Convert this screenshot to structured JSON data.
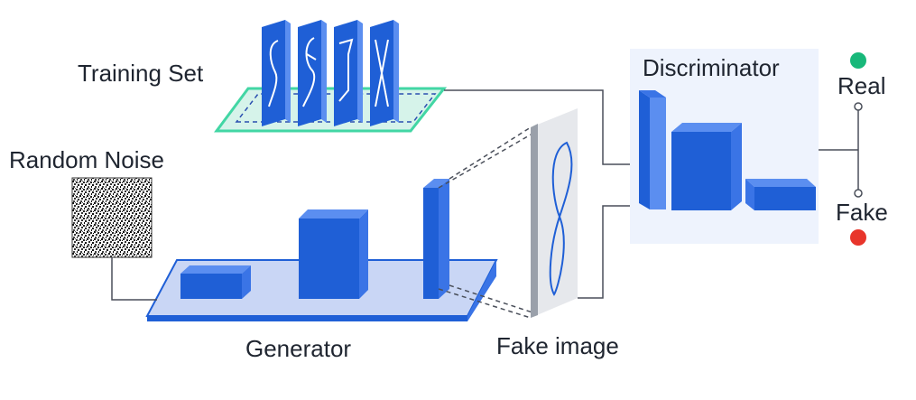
{
  "labels": {
    "training_set": "Training Set",
    "random_noise": "Random Noise",
    "generator": "Generator",
    "fake_image": "Fake image",
    "discriminator": "Discriminator",
    "real": "Real",
    "fake": "Fake"
  },
  "colors": {
    "block_front": "#1f5fd6",
    "block_top": "#5b8ef0",
    "block_side": "#3a74e6",
    "generator_platform": "#c9d6f5",
    "training_platform": "#d6f3ea",
    "training_edge": "#42d6a4",
    "discriminator_panel": "#eef3fd",
    "real_dot": "#18b87a",
    "fake_dot": "#e8352b",
    "connector": "#4a4f5a"
  },
  "icons": {
    "real_indicator": "green-dot-icon",
    "fake_indicator": "red-dot-icon",
    "noise_image": "noise-texture-icon"
  }
}
